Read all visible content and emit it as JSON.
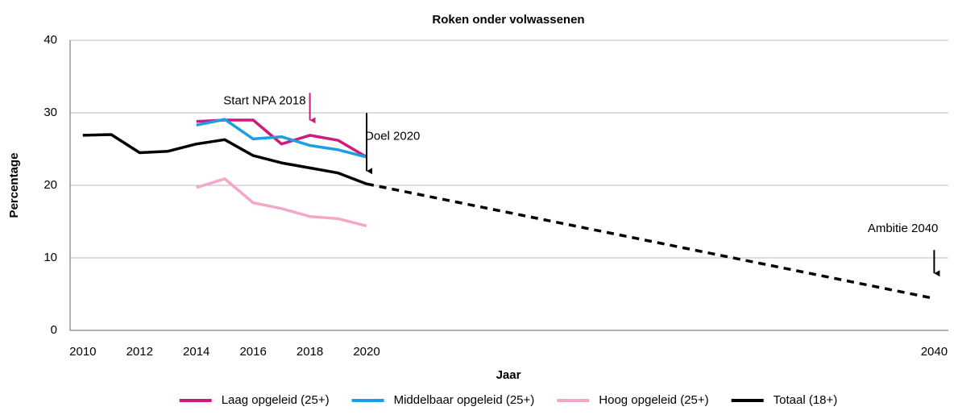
{
  "chart_data": {
    "type": "line",
    "title": "Roken onder volwassenen",
    "x_label": "Jaar",
    "y_label": "Percentage",
    "xlim": [
      2009.55,
      2040.5
    ],
    "ylim": [
      0,
      40
    ],
    "xticks": [
      2010,
      2012,
      2014,
      2016,
      2018,
      2020,
      2040
    ],
    "yticks": [
      0,
      10,
      20,
      30,
      40
    ],
    "grid": true,
    "legend": "bottom",
    "series": [
      {
        "name": "Laag opgeleid (25+)",
        "color": "#cf1a7d",
        "x": [
          2014,
          2015,
          2016,
          2017,
          2018,
          2019,
          2020
        ],
        "values": [
          28.8,
          29.0,
          29.0,
          25.7,
          26.9,
          26.2,
          23.9
        ]
      },
      {
        "name": "Middelbaar opgeleid (25+)",
        "color": "#1aa0e0",
        "x": [
          2014,
          2015,
          2016,
          2017,
          2018,
          2019,
          2020
        ],
        "values": [
          28.3,
          29.1,
          26.4,
          26.7,
          25.5,
          24.9,
          23.9
        ]
      },
      {
        "name": "Hoog opgeleid (25+)",
        "color": "#f3a7c9",
        "x": [
          2014,
          2015,
          2016,
          2017,
          2018,
          2019,
          2020
        ],
        "values": [
          19.7,
          20.9,
          17.6,
          16.8,
          15.7,
          15.4,
          14.4
        ]
      },
      {
        "name": "Totaal (18+)",
        "color": "#000000",
        "x": [
          2010,
          2011,
          2012,
          2013,
          2014,
          2015,
          2016,
          2017,
          2018,
          2019,
          2020
        ],
        "values": [
          26.9,
          27.0,
          24.5,
          24.7,
          25.7,
          26.3,
          24.1,
          23.1,
          22.4,
          21.7,
          20.2
        ]
      }
    ],
    "projection": {
      "color": "#000000",
      "dashed": true,
      "x": [
        2020,
        2040
      ],
      "values": [
        20.2,
        4.4
      ]
    },
    "annotations": [
      {
        "text": "Start NPA 2018",
        "x": 2018,
        "y": 28.3,
        "color": "#cf1a7d"
      },
      {
        "text": "Doel 2020",
        "x": 2020,
        "y": 21.3,
        "color": "#000000"
      },
      {
        "text": "Ambitie 2040",
        "x": 2040,
        "y": 7.2,
        "color": "#000000"
      }
    ]
  }
}
